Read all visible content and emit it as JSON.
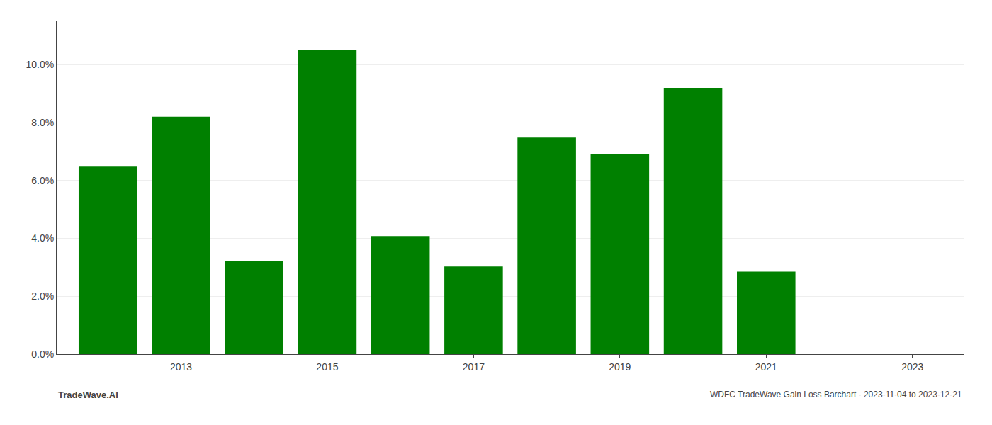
{
  "chart_data": {
    "type": "bar",
    "title": "WDFC TradeWave Gain Loss Barchart - 2023-11-04 to 2023-12-21",
    "annotations": [
      "TradeWave.AI"
    ],
    "x": [
      2012,
      2013,
      2014,
      2015,
      2016,
      2017,
      2018,
      2019,
      2020,
      2021,
      2022
    ],
    "values": [
      0.0648,
      0.082,
      0.0322,
      0.105,
      0.0408,
      0.0303,
      0.0748,
      0.069,
      0.092,
      0.0285,
      0.0
    ],
    "color": "#008000",
    "xlim": [
      2011.3,
      2023.7
    ],
    "xticks": [
      2013,
      2015,
      2017,
      2019,
      2021,
      2023
    ],
    "ylim": [
      0.0,
      0.115
    ],
    "yticks": [
      {
        "value": 0.0,
        "label": "0.0%"
      },
      {
        "value": 0.02,
        "label": "2.0%"
      },
      {
        "value": 0.04,
        "label": "4.0%"
      },
      {
        "value": 0.06,
        "label": "6.0%"
      },
      {
        "value": 0.08,
        "label": "8.0%"
      },
      {
        "value": 0.1,
        "label": "10.0%"
      }
    ],
    "grid": true
  }
}
